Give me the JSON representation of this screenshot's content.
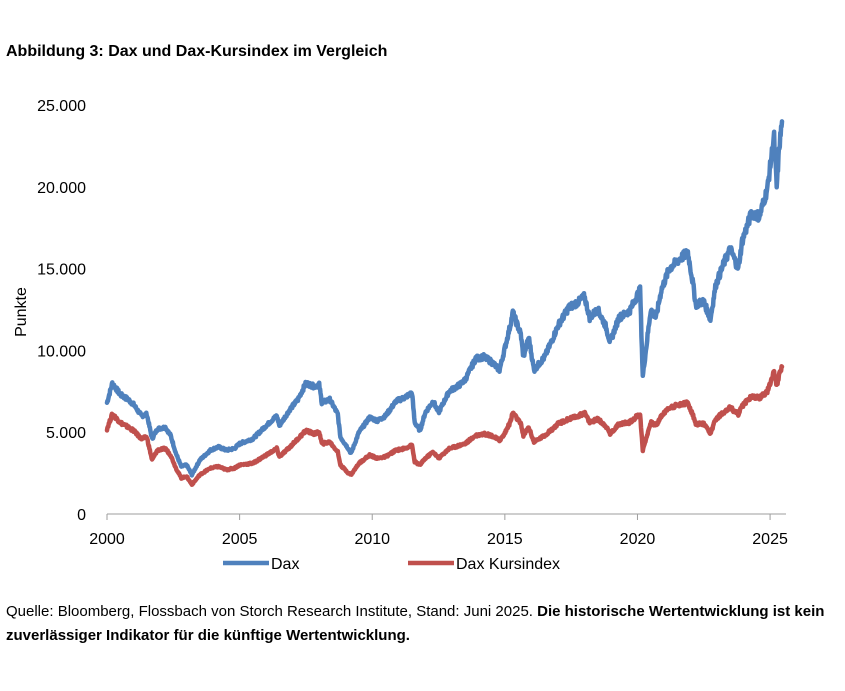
{
  "chart_data": {
    "type": "line",
    "title": "Abbildung 3: Dax und Dax-Kursindex im Vergleich",
    "xlabel": "",
    "ylabel": "Punkte",
    "xlim": [
      2000,
      2025.6
    ],
    "ylim": [
      0,
      25000
    ],
    "x_ticks": [
      2000,
      2005,
      2010,
      2015,
      2020,
      2025
    ],
    "x_tick_labels": [
      "2000",
      "2005",
      "2010",
      "2015",
      "2020",
      "2025"
    ],
    "y_ticks": [
      0,
      5000,
      10000,
      15000,
      20000,
      25000
    ],
    "y_tick_labels": [
      "0",
      "5.000",
      "10.000",
      "15.000",
      "20.000",
      "25.000"
    ],
    "legend_position": "bottom",
    "series": [
      {
        "name": "Dax",
        "color": "#4f81bd",
        "points": [
          [
            2000.0,
            6800
          ],
          [
            2000.2,
            8000
          ],
          [
            2000.5,
            7300
          ],
          [
            2000.8,
            7000
          ],
          [
            2001.0,
            6700
          ],
          [
            2001.3,
            6000
          ],
          [
            2001.5,
            6100
          ],
          [
            2001.7,
            4600
          ],
          [
            2001.9,
            5200
          ],
          [
            2002.2,
            5300
          ],
          [
            2002.4,
            4800
          ],
          [
            2002.6,
            3700
          ],
          [
            2002.8,
            2900
          ],
          [
            2003.0,
            3000
          ],
          [
            2003.2,
            2400
          ],
          [
            2003.5,
            3300
          ],
          [
            2003.9,
            3900
          ],
          [
            2004.2,
            4100
          ],
          [
            2004.5,
            3900
          ],
          [
            2004.8,
            4000
          ],
          [
            2005.0,
            4300
          ],
          [
            2005.5,
            4600
          ],
          [
            2006.0,
            5400
          ],
          [
            2006.4,
            6000
          ],
          [
            2006.5,
            5400
          ],
          [
            2006.9,
            6400
          ],
          [
            2007.2,
            7000
          ],
          [
            2007.5,
            8000
          ],
          [
            2007.8,
            7800
          ],
          [
            2008.0,
            7900
          ],
          [
            2008.1,
            6800
          ],
          [
            2008.4,
            7000
          ],
          [
            2008.7,
            6100
          ],
          [
            2008.8,
            4700
          ],
          [
            2009.1,
            4000
          ],
          [
            2009.2,
            3700
          ],
          [
            2009.5,
            5000
          ],
          [
            2009.9,
            5900
          ],
          [
            2010.2,
            5700
          ],
          [
            2010.5,
            6000
          ],
          [
            2010.9,
            6900
          ],
          [
            2011.2,
            7100
          ],
          [
            2011.5,
            7400
          ],
          [
            2011.6,
            5600
          ],
          [
            2011.8,
            5100
          ],
          [
            2012.0,
            6200
          ],
          [
            2012.3,
            6900
          ],
          [
            2012.5,
            6200
          ],
          [
            2012.9,
            7500
          ],
          [
            2013.3,
            7900
          ],
          [
            2013.5,
            8200
          ],
          [
            2013.9,
            9500
          ],
          [
            2014.2,
            9600
          ],
          [
            2014.5,
            9300
          ],
          [
            2014.8,
            8800
          ],
          [
            2014.95,
            9800
          ],
          [
            2015.2,
            11500
          ],
          [
            2015.3,
            12300
          ],
          [
            2015.6,
            11000
          ],
          [
            2015.7,
            9600
          ],
          [
            2015.9,
            10800
          ],
          [
            2016.1,
            8800
          ],
          [
            2016.5,
            9600
          ],
          [
            2016.8,
            10700
          ],
          [
            2017.0,
            11500
          ],
          [
            2017.4,
            12600
          ],
          [
            2017.8,
            13000
          ],
          [
            2018.0,
            13300
          ],
          [
            2018.2,
            12000
          ],
          [
            2018.5,
            12500
          ],
          [
            2018.8,
            11500
          ],
          [
            2018.97,
            10500
          ],
          [
            2019.3,
            12000
          ],
          [
            2019.7,
            12400
          ],
          [
            2020.0,
            13400
          ],
          [
            2020.1,
            13700
          ],
          [
            2020.2,
            8400
          ],
          [
            2020.5,
            12500
          ],
          [
            2020.7,
            12000
          ],
          [
            2020.9,
            13700
          ],
          [
            2021.2,
            15000
          ],
          [
            2021.6,
            15600
          ],
          [
            2021.9,
            16000
          ],
          [
            2022.1,
            14000
          ],
          [
            2022.2,
            12800
          ],
          [
            2022.5,
            13000
          ],
          [
            2022.75,
            11900
          ],
          [
            2022.95,
            14000
          ],
          [
            2023.3,
            15500
          ],
          [
            2023.5,
            16200
          ],
          [
            2023.8,
            15000
          ],
          [
            2023.95,
            16700
          ],
          [
            2024.3,
            18400
          ],
          [
            2024.6,
            18200
          ],
          [
            2024.9,
            19900
          ],
          [
            2025.1,
            22500
          ],
          [
            2025.15,
            23000
          ],
          [
            2025.25,
            20000
          ],
          [
            2025.35,
            22500
          ],
          [
            2025.45,
            24000
          ]
        ]
      },
      {
        "name": "Dax Kursindex",
        "color": "#c0504d",
        "points": [
          [
            2000.0,
            5200
          ],
          [
            2000.2,
            6100
          ],
          [
            2000.5,
            5600
          ],
          [
            2000.8,
            5300
          ],
          [
            2001.0,
            5100
          ],
          [
            2001.3,
            4600
          ],
          [
            2001.5,
            4700
          ],
          [
            2001.7,
            3300
          ],
          [
            2001.9,
            3900
          ],
          [
            2002.2,
            4000
          ],
          [
            2002.4,
            3600
          ],
          [
            2002.6,
            2800
          ],
          [
            2002.8,
            2200
          ],
          [
            2003.0,
            2300
          ],
          [
            2003.2,
            1800
          ],
          [
            2003.5,
            2400
          ],
          [
            2003.9,
            2800
          ],
          [
            2004.2,
            2900
          ],
          [
            2004.5,
            2700
          ],
          [
            2004.8,
            2800
          ],
          [
            2005.0,
            3000
          ],
          [
            2005.5,
            3100
          ],
          [
            2006.0,
            3600
          ],
          [
            2006.4,
            4000
          ],
          [
            2006.5,
            3500
          ],
          [
            2006.9,
            4100
          ],
          [
            2007.2,
            4600
          ],
          [
            2007.5,
            5100
          ],
          [
            2007.8,
            4900
          ],
          [
            2008.0,
            5000
          ],
          [
            2008.1,
            4300
          ],
          [
            2008.4,
            4400
          ],
          [
            2008.7,
            3800
          ],
          [
            2008.8,
            3000
          ],
          [
            2009.1,
            2500
          ],
          [
            2009.2,
            2400
          ],
          [
            2009.5,
            3100
          ],
          [
            2009.9,
            3600
          ],
          [
            2010.2,
            3400
          ],
          [
            2010.5,
            3500
          ],
          [
            2010.9,
            3900
          ],
          [
            2011.2,
            4000
          ],
          [
            2011.5,
            4200
          ],
          [
            2011.6,
            3200
          ],
          [
            2011.8,
            3000
          ],
          [
            2012.0,
            3400
          ],
          [
            2012.3,
            3800
          ],
          [
            2012.5,
            3400
          ],
          [
            2012.9,
            4000
          ],
          [
            2013.3,
            4200
          ],
          [
            2013.5,
            4300
          ],
          [
            2013.9,
            4800
          ],
          [
            2014.2,
            4900
          ],
          [
            2014.5,
            4800
          ],
          [
            2014.8,
            4500
          ],
          [
            2014.95,
            4800
          ],
          [
            2015.2,
            5600
          ],
          [
            2015.3,
            6200
          ],
          [
            2015.6,
            5500
          ],
          [
            2015.7,
            4800
          ],
          [
            2015.9,
            5300
          ],
          [
            2016.1,
            4400
          ],
          [
            2016.5,
            4800
          ],
          [
            2016.8,
            5200
          ],
          [
            2017.0,
            5500
          ],
          [
            2017.4,
            5800
          ],
          [
            2017.8,
            6000
          ],
          [
            2018.0,
            6200
          ],
          [
            2018.2,
            5600
          ],
          [
            2018.5,
            5800
          ],
          [
            2018.8,
            5400
          ],
          [
            2018.97,
            4900
          ],
          [
            2019.3,
            5500
          ],
          [
            2019.7,
            5600
          ],
          [
            2020.0,
            6000
          ],
          [
            2020.1,
            6100
          ],
          [
            2020.2,
            3900
          ],
          [
            2020.5,
            5600
          ],
          [
            2020.7,
            5400
          ],
          [
            2020.9,
            6000
          ],
          [
            2021.2,
            6500
          ],
          [
            2021.6,
            6700
          ],
          [
            2021.9,
            6800
          ],
          [
            2022.1,
            6000
          ],
          [
            2022.2,
            5500
          ],
          [
            2022.5,
            5500
          ],
          [
            2022.75,
            4900
          ],
          [
            2022.95,
            5800
          ],
          [
            2023.3,
            6300
          ],
          [
            2023.5,
            6500
          ],
          [
            2023.8,
            6100
          ],
          [
            2023.95,
            6600
          ],
          [
            2024.3,
            7200
          ],
          [
            2024.6,
            7100
          ],
          [
            2024.9,
            7500
          ],
          [
            2025.1,
            8500
          ],
          [
            2025.15,
            8700
          ],
          [
            2025.25,
            7800
          ],
          [
            2025.35,
            8600
          ],
          [
            2025.45,
            9000
          ]
        ]
      }
    ]
  },
  "source": {
    "regular": "Quelle: Bloomberg, Flossbach von Storch Research Institute, Stand: Juni 2025. ",
    "bold": "Die historische Wertentwicklung ist kein zuverlässiger Indikator für die künftige Wertentwicklung."
  }
}
